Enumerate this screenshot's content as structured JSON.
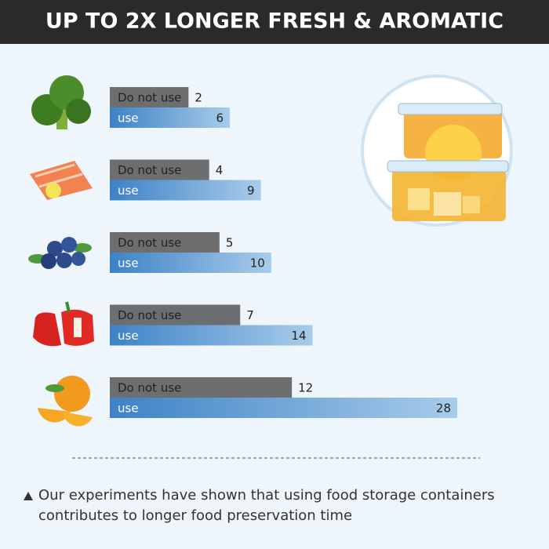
{
  "chart_data": {
    "type": "bar",
    "orientation": "horizontal",
    "title": "UP TO 2X LONGER FRESH & AROMATIC",
    "categories": [
      null,
      null,
      null,
      null,
      null
    ],
    "series": [
      {
        "name": "Do not use",
        "color": "#6d6e70",
        "values": [
          2,
          4,
          5,
          7,
          12
        ]
      },
      {
        "name": "use",
        "color": "#3d82c6",
        "values": [
          6,
          9,
          10,
          14,
          28
        ]
      }
    ],
    "footnote": [
      "Our experiments have shown that using food storage containers",
      "contributes to longer food preservation time"
    ]
  }
}
